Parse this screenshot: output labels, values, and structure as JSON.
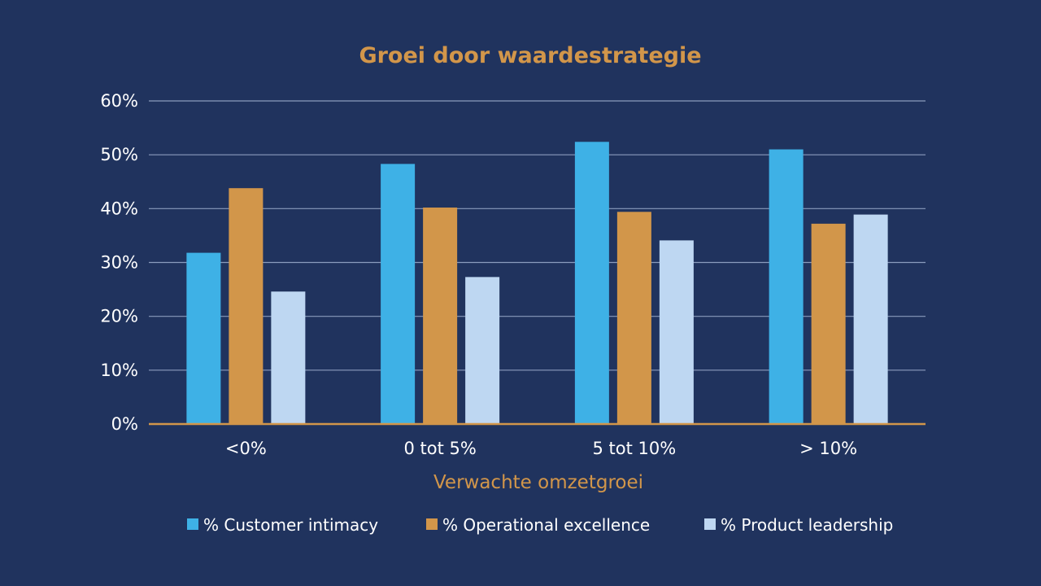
{
  "chart_data": {
    "type": "bar",
    "title": "Groei door waardestrategie",
    "xlabel": "Verwachte omzetgroei",
    "ylabel": "",
    "categories": [
      "<0%",
      "0 tot 5%",
      "5 tot 10%",
      "> 10%"
    ],
    "ylim": [
      0,
      60
    ],
    "yticks": [
      0,
      10,
      20,
      30,
      40,
      50,
      60
    ],
    "ytick_labels": [
      "0%",
      "10%",
      "20%",
      "30%",
      "40%",
      "50%",
      "60%"
    ],
    "grid": true,
    "legend_position": "bottom",
    "series": [
      {
        "name": "% Customer intimacy",
        "color": "#3eb1e6",
        "values": [
          31.8,
          48.3,
          52.4,
          51.0
        ]
      },
      {
        "name": "% Operational excellence",
        "color": "#d2964a",
        "values": [
          43.8,
          40.2,
          39.4,
          37.2
        ]
      },
      {
        "name": "% Product leadership",
        "color": "#bed7f2",
        "values": [
          24.6,
          27.3,
          34.1,
          38.9
        ]
      }
    ]
  }
}
